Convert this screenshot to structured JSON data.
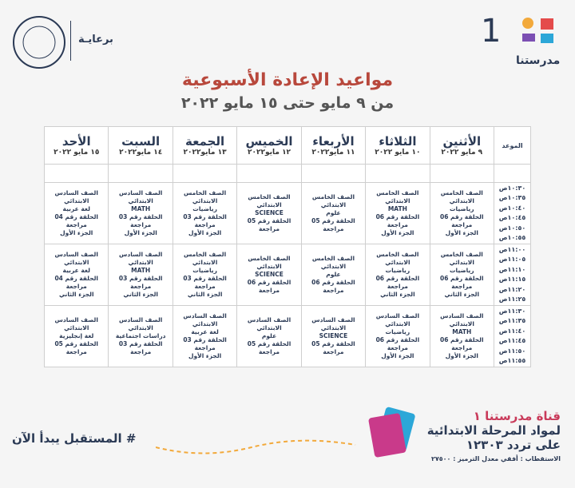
{
  "header": {
    "logo_number": "1",
    "logo_name": "مدرستنا",
    "sponsor": "برعايـة",
    "title": "مواعيد الإعادة الأسبوعية",
    "subtitle": "من ٩ مايو حتى ١٥ مايو ٢٠٢٢"
  },
  "table": {
    "time_header": "الموعد",
    "days": [
      {
        "name": "الأثنين",
        "date": "٩ مايو ٢٠٢٢"
      },
      {
        "name": "الثلاثاء",
        "date": "١٠ مايو ٢٠٢٢"
      },
      {
        "name": "الأربعاء",
        "date": "١١ مايو٢٠٢٢"
      },
      {
        "name": "الخميس",
        "date": "١٢ مايو٢٠٢٢"
      },
      {
        "name": "الجمعة",
        "date": "١٣ مايو٢٠٢٢"
      },
      {
        "name": "السبت",
        "date": "١٤ مايو٢٠٢٢"
      },
      {
        "name": "الأحد",
        "date": "١٥ مايو ٢٠٢٢"
      }
    ],
    "rows": [
      {
        "times": [
          "١٠:٣٠ص",
          "١٠:٣٥ص",
          "١٠:٤٠ص",
          "١٠:٤٥ص",
          "١٠:٥٠ص",
          "١٠:٥٥ص"
        ],
        "cells": [
          [
            "الصف الخامس الابتدائي",
            "رياضيات",
            "الحلقة رقم 06 مراجعة",
            "الجزء الأول"
          ],
          [
            "الصف الخامس الابتدائي",
            "MATH",
            "الحلقة رقم 06 مراجعة",
            "الجزء الأول"
          ],
          [
            "الصف الخامس الابتدائي",
            "علوم",
            "الحلقة رقم 05 مراجعة"
          ],
          [
            "الصف الخامس الابتدائي",
            "SCIENCE",
            "الحلقة رقم 05 مراجعة"
          ],
          [
            "الصف الخامس الابتدائي",
            "رياضيات",
            "الحلقة رقم 03 مراجعة",
            "الجزء الأول"
          ],
          [
            "الصف السادس الابتدائي",
            "MATH",
            "الحلقة رقم 03 مراجعة",
            "الجزء الأول"
          ],
          [
            "الصف السادس الابتدائي",
            "لغة عربية",
            "الحلقة رقم 04 مراجعة",
            "الجزء الأول"
          ]
        ]
      },
      {
        "times": [
          "١١:٠٠ص",
          "١١:٠٥ص",
          "١١:١٠ص",
          "١١:١٥ص",
          "١١:٢٠ص",
          "١١:٢٥ص"
        ],
        "cells": [
          [
            "الصف الخامس الابتدائي",
            "رياضيات",
            "الحلقة رقم 06 مراجعة",
            "الجزء الثاني"
          ],
          [
            "الصف الخامس الابتدائي",
            "رياضيات",
            "الحلقة رقم 06 مراجعة",
            "الجزء الثاني"
          ],
          [
            "الصف الخامس الابتدائي",
            "علوم",
            "الحلقة رقم 06 مراجعة"
          ],
          [
            "الصف الخامس الابتدائي",
            "SCIENCE",
            "الحلقة رقم 06 مراجعة"
          ],
          [
            "الصف الخامس الابتدائي",
            "رياضيات",
            "الحلقة رقم 03 مراجعة",
            "الجزء الثاني"
          ],
          [
            "الصف السادس الابتدائي",
            "MATH",
            "الحلقة رقم 03 مراجعة",
            "الجزء الثاني"
          ],
          [
            "الصف السادس الابتدائي",
            "لغة عربية",
            "الحلقة رقم 04 مراجعة",
            "الجزء الثاني"
          ]
        ]
      },
      {
        "times": [
          "١١:٣٠ص",
          "١١:٣٥ص",
          "١١:٤٠ص",
          "١١:٤٥ص",
          "١١:٥٠ص",
          "١١:٥٥ص"
        ],
        "cells": [
          [
            "الصف السادس الابتدائي",
            "MATH",
            "الحلقة رقم 06 مراجعة",
            "الجزء الأول"
          ],
          [
            "الصف السادس الابتدائي",
            "رياضيات",
            "الحلقة رقم 06 مراجعة",
            "الجزء الأول"
          ],
          [
            "الصف السادس الابتدائي",
            "SCIENCE",
            "الحلقة رقم 05 مراجعة"
          ],
          [
            "الصف السادس الابتدائي",
            "علوم",
            "الحلقة رقم 05 مراجعة"
          ],
          [
            "الصف السادس الابتدائي",
            "لغة عربية",
            "الحلقة رقم 03 مراجعة",
            "الجزء الأول"
          ],
          [
            "الصف السادس الابتدائي",
            "دراسات اجتماعية",
            "الحلقة رقم 03 مراجعة"
          ],
          [
            "الصف السادس الابتدائي",
            "لغة إنجليزية",
            "الحلقة رقم 05 مراجعة"
          ]
        ]
      }
    ]
  },
  "footer": {
    "slogan": "# المستقبل يبدأ الآن",
    "channel": "قناة مدرستنا ١",
    "subjects": "لمواد المرحلة الابتدائية",
    "frequency": "على تردد ١٢٣٠٣",
    "reception": "الاستقطاب : أفقي معدل الترميز : ٢٧٥٠٠"
  }
}
